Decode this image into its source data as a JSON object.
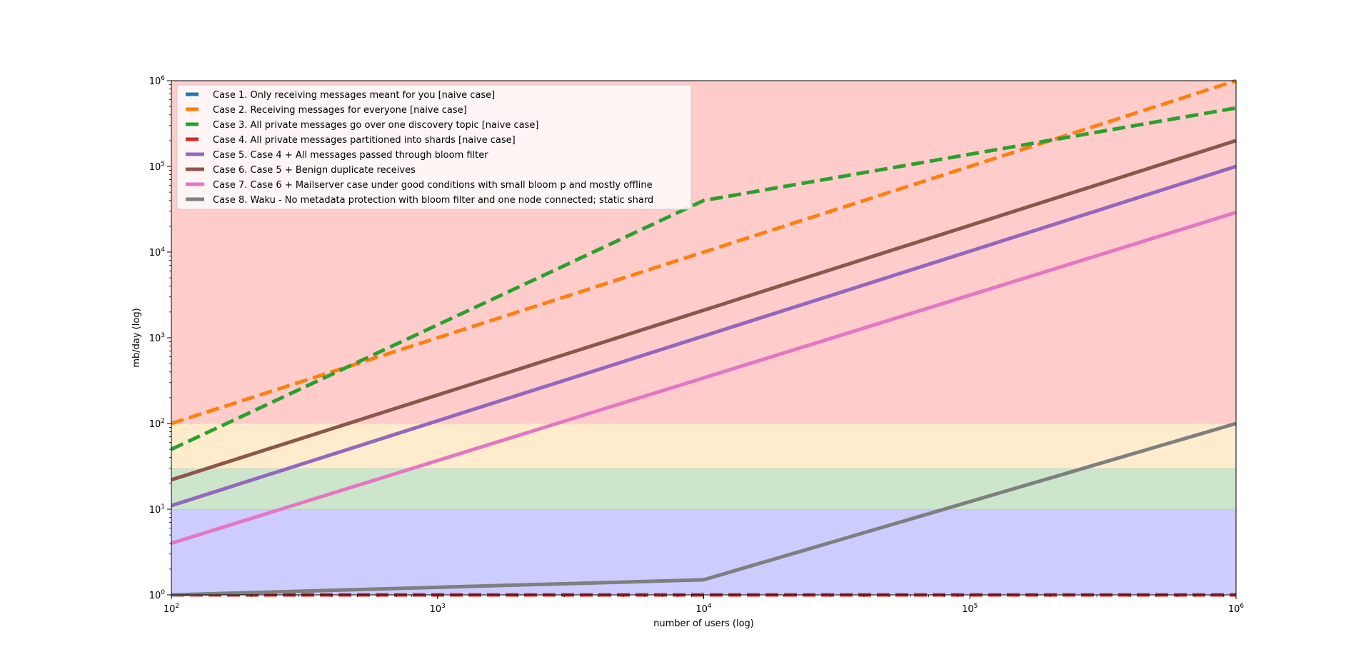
{
  "chart_data": {
    "type": "line",
    "title": "",
    "xlabel": "number of users (log)",
    "ylabel": "mb/day (log)",
    "xscale": "log",
    "yscale": "log",
    "xlim": [
      100,
      1000000
    ],
    "ylim": [
      1,
      1000000
    ],
    "x_ticks": [
      {
        "value": 100,
        "base": "10",
        "exp": "2"
      },
      {
        "value": 1000,
        "base": "10",
        "exp": "3"
      },
      {
        "value": 10000,
        "base": "10",
        "exp": "4"
      },
      {
        "value": 100000,
        "base": "10",
        "exp": "5"
      },
      {
        "value": 1000000,
        "base": "10",
        "exp": "6"
      }
    ],
    "y_ticks": [
      {
        "value": 1,
        "base": "10",
        "exp": "0"
      },
      {
        "value": 10,
        "base": "10",
        "exp": "1"
      },
      {
        "value": 100,
        "base": "10",
        "exp": "2"
      },
      {
        "value": 1000,
        "base": "10",
        "exp": "3"
      },
      {
        "value": 10000,
        "base": "10",
        "exp": "4"
      },
      {
        "value": 100000,
        "base": "10",
        "exp": "5"
      },
      {
        "value": 1000000,
        "base": "10",
        "exp": "6"
      }
    ],
    "bands": [
      {
        "from": 1,
        "to": 10,
        "color": "#ccccff"
      },
      {
        "from": 10,
        "to": 30,
        "color": "#cce6cc"
      },
      {
        "from": 30,
        "to": 100,
        "color": "#ffeccc"
      },
      {
        "from": 100,
        "to": 1000000,
        "color": "#ffcccc"
      }
    ],
    "legend_position": "top-left",
    "series": [
      {
        "name": "Case 1. Only receiving messages meant for you [naive case]",
        "color": "#1f77b4",
        "dash": true,
        "x": [
          100,
          1000000
        ],
        "y": [
          1.0,
          1.0
        ]
      },
      {
        "name": "Case 2. Receiving messages for everyone [naive case]",
        "color": "#ff7f0e",
        "dash": true,
        "x": [
          100,
          1000000
        ],
        "y": [
          100,
          1000000
        ]
      },
      {
        "name": "Case 3. All private messages go over one discovery topic [naive case]",
        "color": "#2ca02c",
        "dash": true,
        "x": [
          100,
          10000,
          1000000
        ],
        "y": [
          50,
          40000,
          480000
        ]
      },
      {
        "name": "Case 4. All private messages partitioned into shards [naive case]",
        "color": "#d62728",
        "dash": true,
        "x": [
          100,
          1000000
        ],
        "y": [
          1.0,
          1.0
        ]
      },
      {
        "name": "Case 5. Case 4 + All messages passed through bloom filter",
        "color": "#9467bd",
        "dash": false,
        "x": [
          100,
          1000000
        ],
        "y": [
          11,
          100000
        ]
      },
      {
        "name": "Case 6. Case 5 + Benign duplicate receives",
        "color": "#8c564b",
        "dash": false,
        "x": [
          100,
          1000000
        ],
        "y": [
          22,
          200000
        ]
      },
      {
        "name": "Case 7. Case 6 + Mailserver case under good conditions with small bloom p and mostly offline",
        "color": "#e377c2",
        "dash": false,
        "x": [
          100,
          1000000
        ],
        "y": [
          4,
          29000
        ]
      },
      {
        "name": "Case 8. Waku - No metadata protection with bloom filter and one node connected; static shard",
        "color": "#7f7f7f",
        "dash": false,
        "x": [
          100,
          10000,
          1000000
        ],
        "y": [
          1.0,
          1.5,
          100
        ]
      }
    ]
  }
}
